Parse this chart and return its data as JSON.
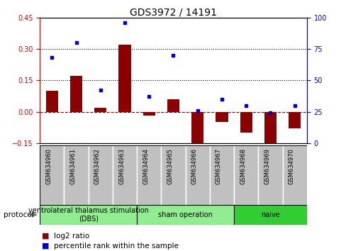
{
  "title": "GDS3972 / 14191",
  "samples": [
    "GSM634960",
    "GSM634961",
    "GSM634962",
    "GSM634963",
    "GSM634964",
    "GSM634965",
    "GSM634966",
    "GSM634967",
    "GSM634968",
    "GSM634969",
    "GSM634970"
  ],
  "log2_ratio": [
    0.1,
    0.17,
    0.02,
    0.32,
    -0.02,
    0.06,
    -0.19,
    -0.05,
    -0.1,
    -0.2,
    -0.08
  ],
  "percentile_rank": [
    68,
    80,
    42,
    96,
    37,
    70,
    26,
    35,
    30,
    24,
    30
  ],
  "ylim_left": [
    -0.15,
    0.45
  ],
  "ylim_right": [
    0,
    100
  ],
  "yticks_left": [
    -0.15,
    0,
    0.15,
    0.3,
    0.45
  ],
  "yticks_right": [
    0,
    25,
    50,
    75,
    100
  ],
  "hlines": [
    0.15,
    0.3
  ],
  "bar_color": "#8B0000",
  "scatter_color": "#0000CD",
  "groups": [
    {
      "label": "ventrolateral thalamus stimulation\n(DBS)",
      "start": 0,
      "end": 3
    },
    {
      "label": "sham operation",
      "start": 4,
      "end": 7
    },
    {
      "label": "naive",
      "start": 8,
      "end": 10
    }
  ],
  "group_colors": [
    "#90EE90",
    "#90EE90",
    "#32CD32"
  ],
  "sample_box_color": "#C0C0C0",
  "protocol_label": "protocol",
  "legend_bar_label": "log2 ratio",
  "legend_scatter_label": "percentile rank within the sample",
  "tick_label_color_left": "#CC0000",
  "tick_label_color_right": "#0000CC",
  "title_fontsize": 10,
  "tick_fontsize": 7,
  "sample_fontsize": 6,
  "legend_fontsize": 7.5,
  "group_fontsize": 7
}
